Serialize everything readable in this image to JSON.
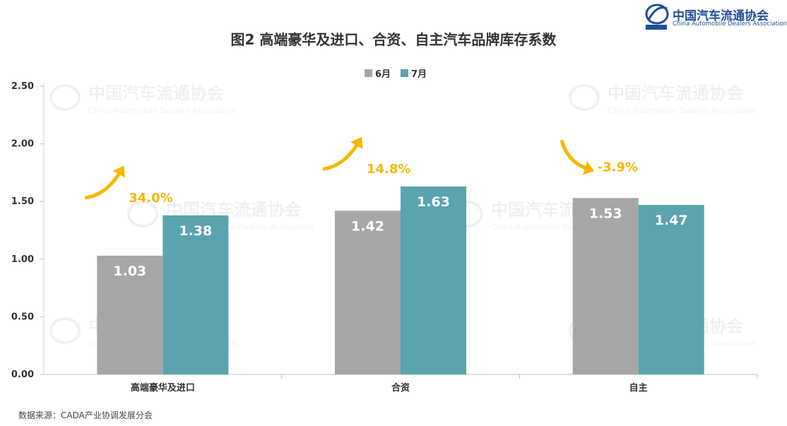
{
  "title": "图2  高端豪华及进口、合资、自主汽车品牌库存系数",
  "logo": {
    "name_zh": "中国汽车流通协会",
    "name_en": "China Automobile Dealers Association",
    "badge": "CADA"
  },
  "watermark": {
    "zh": "中国汽车流通协会",
    "en": "China Automobile Dealers Association"
  },
  "source": "数据来源：CADA产业协调发展分会",
  "colors": {
    "june": "#a6a6a6",
    "july": "#5ba3ae",
    "arrow": "#f5b800"
  },
  "chart_data": {
    "type": "bar",
    "categories": [
      "高端豪华及进口",
      "合资",
      "自主"
    ],
    "series": [
      {
        "name": "6月",
        "values": [
          1.03,
          1.42,
          1.53
        ]
      },
      {
        "name": "7月",
        "values": [
          1.38,
          1.63,
          1.47
        ]
      }
    ],
    "value_labels": [
      [
        "1.03",
        "1.42",
        "1.53"
      ],
      [
        "1.38",
        "1.63",
        "1.47"
      ]
    ],
    "yticks": [
      "0.00",
      "0.50",
      "1.00",
      "1.50",
      "2.00",
      "2.50"
    ],
    "ylim": [
      0,
      2.5
    ],
    "annotations": [
      {
        "text": "34.0%",
        "direction": "up"
      },
      {
        "text": "14.8%",
        "direction": "up"
      },
      {
        "text": "-3.9%",
        "direction": "down"
      }
    ],
    "legend_position": "top-center"
  }
}
